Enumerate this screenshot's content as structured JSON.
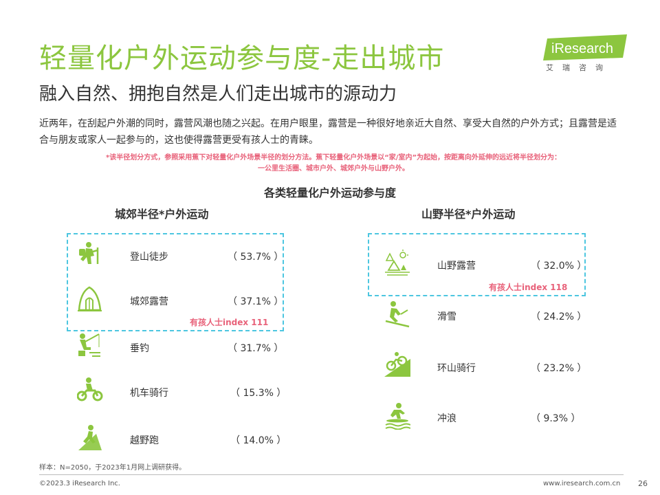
{
  "header": {
    "title": "轻量化户外运动参与度-走出城市",
    "subtitle": "融入自然、拥抱自然是人们走出城市的源动力"
  },
  "logo": {
    "text": "iResearch",
    "cn": "艾瑞咨询",
    "color": "#8cc63f"
  },
  "intro": "近两年，在刮起户外潮的同时，露营风潮也随之兴起。在用户眼里，露营是一种很好地亲近大自然、享受大自然的户外方式；且露营是适合与朋友或家人一起参与的，这也使得露营更受有孩人士的青睐。",
  "note": {
    "line1": "*该半径划分方式，参照采用蕉下对轻量化户外场景半径的划分方法。蕉下轻量化户外场景以“家/室内”为起始，按距离向外延伸的远近将半径划分为：",
    "line2": "一公里生活圈、城市户外、城郊户外与山野户外。"
  },
  "chart_data": {
    "type": "table",
    "title": "各类轻量化户外运动参与度",
    "groups": [
      {
        "name": "城郊半径*户外运动",
        "items": [
          {
            "label": "登山徒步",
            "value": 53.7,
            "display": "（ 53.7% ）",
            "icon": "hiking-icon"
          },
          {
            "label": "城郊露营",
            "value": 37.1,
            "display": "（ 37.1% ）",
            "icon": "tent-icon"
          },
          {
            "label": "垂钓",
            "value": 31.7,
            "display": "（ 31.7% ）",
            "icon": "fishing-icon"
          },
          {
            "label": "机车骑行",
            "value": 15.3,
            "display": "（ 15.3% ）",
            "icon": "motorcycle-icon"
          },
          {
            "label": "越野跑",
            "value": 14.0,
            "display": "（ 14.0% ）",
            "icon": "trail-running-icon"
          }
        ],
        "highlight_note": "有孩人士index 111"
      },
      {
        "name": "山野半径*户外运动",
        "items": [
          {
            "label": "山野露营",
            "value": 32.0,
            "display": "（ 32.0% ）",
            "icon": "wild-camping-icon"
          },
          {
            "label": "滑雪",
            "value": 24.2,
            "display": "（ 24.2% ）",
            "icon": "skiing-icon"
          },
          {
            "label": "环山骑行",
            "value": 23.2,
            "display": "（ 23.2% ）",
            "icon": "mountain-biking-icon"
          },
          {
            "label": "冲浪",
            "value": 9.3,
            "display": "（  9.3% ）",
            "icon": "surfing-icon"
          }
        ],
        "highlight_note": "有孩人士index 118"
      }
    ]
  },
  "colors": {
    "accent": "#8cc63f",
    "highlight_box": "#4cc6e0",
    "note": "#e8627a"
  },
  "footer": {
    "sample": "样本：N=2050，于2023年1月网上调研获得。",
    "copyright": "©2023.3 iResearch Inc.",
    "website": "www.iresearch.com.cn",
    "page": "26"
  }
}
